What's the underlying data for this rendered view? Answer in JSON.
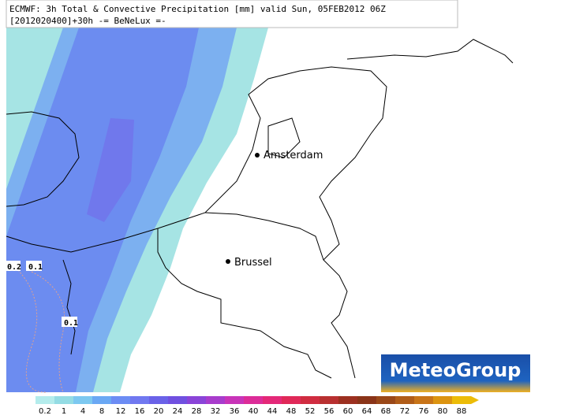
{
  "header": {
    "title": "ECMWF: 3h Total & Convective Precipitation [mm] valid Sun, 05FEB2012 06Z",
    "subtitle": "[2012020400]+30h -= BeNeLux =-"
  },
  "cities": [
    {
      "label": "Amsterdam"
    },
    {
      "label": "Brussel"
    }
  ],
  "contour_labels": [
    "0.2",
    "0.1",
    "0.1"
  ],
  "logo": {
    "text": "MeteoGroup"
  },
  "colorbar": {
    "labels": [
      0.2,
      1,
      4,
      8,
      12,
      16,
      20,
      24,
      28,
      32,
      36,
      40,
      44,
      48,
      52,
      56,
      60,
      64,
      68,
      72,
      76,
      80,
      88
    ],
    "colors": [
      "#b4ecec",
      "#94dce4",
      "#7cc8f0",
      "#6aa8f4",
      "#6c8cf4",
      "#7078f0",
      "#6a62e8",
      "#7050e0",
      "#8a44d8",
      "#a83ccc",
      "#c834b8",
      "#dc2c98",
      "#e42878",
      "#e02858",
      "#d02c40",
      "#b83030",
      "#9c3020",
      "#8a3418",
      "#9a4818",
      "#b05c18",
      "#c87418",
      "#dc9410",
      "#ecbc08"
    ]
  }
}
